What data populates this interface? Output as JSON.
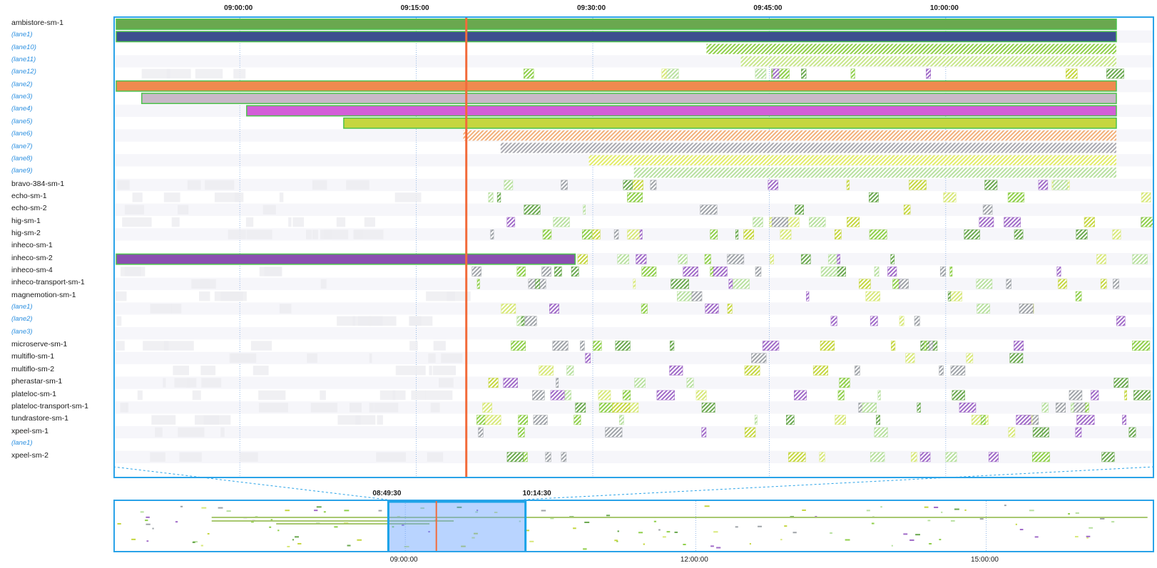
{
  "timeline": {
    "axis_ticks": [
      "09:00:00",
      "09:15:00",
      "09:30:00",
      "09:45:00",
      "10:00:00"
    ],
    "overview_ticks": [
      "09:00:00",
      "12:00:00",
      "15:00:00"
    ],
    "selection": {
      "start_label": "08:49:30",
      "end_label": "10:14:30"
    },
    "current_time_marker_color": "#f26b3a"
  },
  "rows": [
    {
      "label": "ambistore-sm-1",
      "kind": "device"
    },
    {
      "label": "(lane1)",
      "kind": "lane"
    },
    {
      "label": "(lane10)",
      "kind": "lane"
    },
    {
      "label": "(lane11)",
      "kind": "lane"
    },
    {
      "label": "(lane12)",
      "kind": "lane"
    },
    {
      "label": "(lane2)",
      "kind": "lane"
    },
    {
      "label": "(lane3)",
      "kind": "lane"
    },
    {
      "label": "(lane4)",
      "kind": "lane"
    },
    {
      "label": "(lane5)",
      "kind": "lane"
    },
    {
      "label": "(lane6)",
      "kind": "lane"
    },
    {
      "label": "(lane7)",
      "kind": "lane"
    },
    {
      "label": "(lane8)",
      "kind": "lane"
    },
    {
      "label": "(lane9)",
      "kind": "lane"
    },
    {
      "label": "bravo-384-sm-1",
      "kind": "device"
    },
    {
      "label": "echo-sm-1",
      "kind": "device"
    },
    {
      "label": "echo-sm-2",
      "kind": "device"
    },
    {
      "label": "hig-sm-1",
      "kind": "device"
    },
    {
      "label": "hig-sm-2",
      "kind": "device"
    },
    {
      "label": "inheco-sm-1",
      "kind": "device"
    },
    {
      "label": "inheco-sm-2",
      "kind": "device"
    },
    {
      "label": "inheco-sm-4",
      "kind": "device"
    },
    {
      "label": "inheco-transport-sm-1",
      "kind": "device"
    },
    {
      "label": "magnemotion-sm-1",
      "kind": "device"
    },
    {
      "label": "(lane1)",
      "kind": "lane"
    },
    {
      "label": "(lane2)",
      "kind": "lane"
    },
    {
      "label": "(lane3)",
      "kind": "lane"
    },
    {
      "label": "microserve-sm-1",
      "kind": "device"
    },
    {
      "label": "multiflo-sm-1",
      "kind": "device"
    },
    {
      "label": "multiflo-sm-2",
      "kind": "device"
    },
    {
      "label": "pherastar-sm-1",
      "kind": "device"
    },
    {
      "label": "plateloc-sm-1",
      "kind": "device"
    },
    {
      "label": "plateloc-transport-sm-1",
      "kind": "device"
    },
    {
      "label": "tundrastore-sm-1",
      "kind": "device"
    },
    {
      "label": "xpeel-sm-1",
      "kind": "device"
    },
    {
      "label": "(lane1)",
      "kind": "lane"
    },
    {
      "label": "xpeel-sm-2",
      "kind": "device"
    }
  ],
  "long_bars": [
    {
      "row": 0,
      "start": "08:49:30",
      "end": "10:14:30",
      "color": "#6aa84f",
      "style": "solid"
    },
    {
      "row": 1,
      "start": "08:49:30",
      "end": "10:14:30",
      "color": "#3c4f8f",
      "style": "solid"
    },
    {
      "row": 2,
      "start": "09:39:40",
      "end": "10:14:30",
      "color": "#8fcf4a",
      "style": "hatch"
    },
    {
      "row": 3,
      "start": "09:42:35",
      "end": "10:14:30",
      "color": "#c8e68c",
      "style": "hatch"
    },
    {
      "row": 5,
      "start": "08:49:30",
      "end": "10:14:30",
      "color": "#ef8a4f",
      "style": "solid"
    },
    {
      "row": 6,
      "start": "08:51:40",
      "end": "10:14:30",
      "color": "#c9b9c9",
      "style": "solid"
    },
    {
      "row": 7,
      "start": "09:00:35",
      "end": "10:14:30",
      "color": "#d35fd8",
      "style": "solid"
    },
    {
      "row": 8,
      "start": "09:08:50",
      "end": "10:14:30",
      "color": "#c5d63f",
      "style": "solid"
    },
    {
      "row": 9,
      "start": "09:19:00",
      "end": "10:14:30",
      "color": "#f2b07a",
      "style": "hatch"
    },
    {
      "row": 10,
      "start": "09:22:10",
      "end": "10:14:30",
      "color": "#a9a9b0",
      "style": "hatch"
    },
    {
      "row": 11,
      "start": "09:29:40",
      "end": "10:14:30",
      "color": "#e2ec6a",
      "style": "hatch"
    },
    {
      "row": 12,
      "start": "09:33:30",
      "end": "10:14:30",
      "color": "#b8e0a0",
      "style": "hatch"
    },
    {
      "row": 19,
      "start": "08:49:30",
      "end": "09:28:30",
      "color": "#8a4fb0",
      "style": "solid"
    }
  ]
}
